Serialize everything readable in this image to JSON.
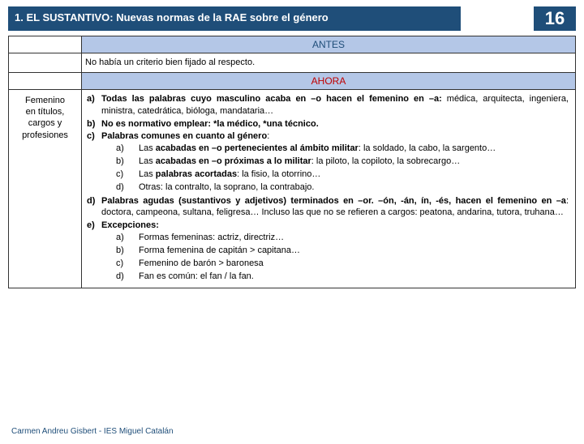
{
  "header": {
    "title": "1. EL SUSTANTIVO: Nuevas normas de la RAE sobre el género",
    "number": "16"
  },
  "sections": {
    "antes_label": "ANTES",
    "ahora_label": "AHORA"
  },
  "antes": {
    "text": "No había un criterio bien fijado al respecto."
  },
  "leftcol": {
    "l1": "Femenino",
    "l2": "en títulos,",
    "l3": "cargos y",
    "l4": "profesiones"
  },
  "ahora": {
    "a_bold": "Todas las palabras cuyo masculino acaba en –o  hacen el femenino en –a:",
    "a_rest": "médica, arquitecta, ingeniera, ministra, catedrática, bióloga, mandataria…",
    "b": "No es normativo emplear: *la médico, *una técnico.",
    "c": "Palabras comunes en cuanto al género",
    "c_colon": ":",
    "c_a_b": "acabadas en –o pertenecientes al ámbito militar",
    "c_a_pre": "Las ",
    "c_a_post": ": la soldado, la cabo, la sargento…",
    "c_b_b": "acabadas en –o próximas a lo militar",
    "c_b_pre": "Las ",
    "c_b_post": ": la piloto, la copiloto, la sobrecargo…",
    "c_c_b": "palabras acortadas",
    "c_c_pre": "Las ",
    "c_c_post": ": la fisio, la otorrino…",
    "c_d": "Otras: la contralto, la soprano, la contrabajo.",
    "d_b": "Palabras agudas (sustantivos y adjetivos) terminados en –or. –ón, -án, ín, -és, hacen el femenino en –a",
    "d_post": ": doctora, campeona, sultana, feligresa… Incluso las que no se refieren a cargos: peatona, andarina, tutora, truhana…",
    "e": "Excepciones:",
    "e_a": "Formas femeninas: actriz, directriz…",
    "e_b": "Forma femenina de capitán > capitana…",
    "e_c": "Femenino de barón > baronesa",
    "e_d": "Fan es común: el fan / la fan."
  },
  "footer": "Carmen Andreu Gisbert - IES Miguel Catalán",
  "colors": {
    "brand": "#1f4e79",
    "sectionbg": "#b4c7e7",
    "ahora_fg": "#c00000"
  }
}
